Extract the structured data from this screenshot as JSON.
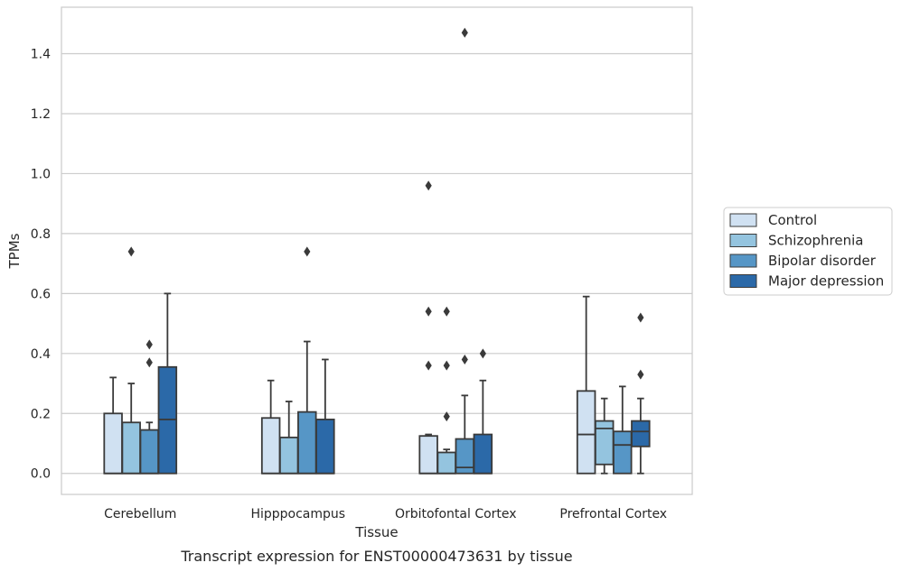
{
  "chart_data": {
    "type": "box",
    "title": "",
    "caption": "Transcript expression for ENST00000473631 by tissue",
    "xlabel": "Tissue",
    "ylabel": "TPMs",
    "ylim": [
      -0.07,
      1.555
    ],
    "yticks": [
      "0.0",
      "0.2",
      "0.4",
      "0.6",
      "0.8",
      "1.0",
      "1.2",
      "1.4"
    ],
    "ytick_values": [
      0.0,
      0.2,
      0.4,
      0.6,
      0.8,
      1.0,
      1.2,
      1.4
    ],
    "grid": "horizontal",
    "legend_position": "right",
    "categories": [
      "Cerebellum",
      "Hipppocampus",
      "Orbitofontal Cortex",
      "Prefrontal Cortex"
    ],
    "series": [
      {
        "name": "Control",
        "color": "#d0e1f2",
        "boxes": [
          {
            "whisker_low": 0.0,
            "q1": 0.0,
            "median": 0.0,
            "q3": 0.2,
            "whisker_high": 0.32,
            "outliers": []
          },
          {
            "whisker_low": 0.0,
            "q1": 0.0,
            "median": 0.0,
            "q3": 0.185,
            "whisker_high": 0.31,
            "outliers": []
          },
          {
            "whisker_low": 0.0,
            "q1": 0.0,
            "median": 0.0,
            "q3": 0.125,
            "whisker_high": 0.13,
            "outliers": [
              0.96,
              0.54,
              0.36
            ]
          },
          {
            "whisker_low": 0.0,
            "q1": 0.0,
            "median": 0.13,
            "q3": 0.275,
            "whisker_high": 0.59,
            "outliers": []
          }
        ]
      },
      {
        "name": "Schizophrenia",
        "color": "#94c4df",
        "boxes": [
          {
            "whisker_low": 0.0,
            "q1": 0.0,
            "median": 0.0,
            "q3": 0.17,
            "whisker_high": 0.3,
            "outliers": [
              0.74
            ]
          },
          {
            "whisker_low": 0.0,
            "q1": 0.0,
            "median": 0.0,
            "q3": 0.12,
            "whisker_high": 0.24,
            "outliers": []
          },
          {
            "whisker_low": 0.0,
            "q1": 0.0,
            "median": 0.0,
            "q3": 0.07,
            "whisker_high": 0.08,
            "outliers": [
              0.54,
              0.36,
              0.19
            ]
          },
          {
            "whisker_low": 0.0,
            "q1": 0.03,
            "median": 0.15,
            "q3": 0.175,
            "whisker_high": 0.25,
            "outliers": []
          }
        ]
      },
      {
        "name": "Bipolar disorder",
        "color": "#5696c6",
        "boxes": [
          {
            "whisker_low": 0.0,
            "q1": 0.0,
            "median": 0.0,
            "q3": 0.145,
            "whisker_high": 0.17,
            "outliers": [
              0.43,
              0.37
            ]
          },
          {
            "whisker_low": 0.0,
            "q1": 0.0,
            "median": 0.0,
            "q3": 0.205,
            "whisker_high": 0.44,
            "outliers": [
              0.74
            ]
          },
          {
            "whisker_low": 0.0,
            "q1": 0.0,
            "median": 0.02,
            "q3": 0.115,
            "whisker_high": 0.26,
            "outliers": [
              1.47,
              0.38
            ]
          },
          {
            "whisker_low": 0.0,
            "q1": 0.0,
            "median": 0.095,
            "q3": 0.14,
            "whisker_high": 0.29,
            "outliers": []
          }
        ]
      },
      {
        "name": "Major depression",
        "color": "#2b69a8",
        "boxes": [
          {
            "whisker_low": 0.0,
            "q1": 0.0,
            "median": 0.18,
            "q3": 0.355,
            "whisker_high": 0.6,
            "outliers": []
          },
          {
            "whisker_low": 0.0,
            "q1": 0.0,
            "median": 0.0,
            "q3": 0.18,
            "whisker_high": 0.38,
            "outliers": []
          },
          {
            "whisker_low": 0.0,
            "q1": 0.0,
            "median": 0.0,
            "q3": 0.13,
            "whisker_high": 0.31,
            "outliers": [
              0.4
            ]
          },
          {
            "whisker_low": 0.0,
            "q1": 0.09,
            "median": 0.14,
            "q3": 0.175,
            "whisker_high": 0.25,
            "outliers": [
              0.52,
              0.33
            ]
          }
        ]
      }
    ]
  }
}
